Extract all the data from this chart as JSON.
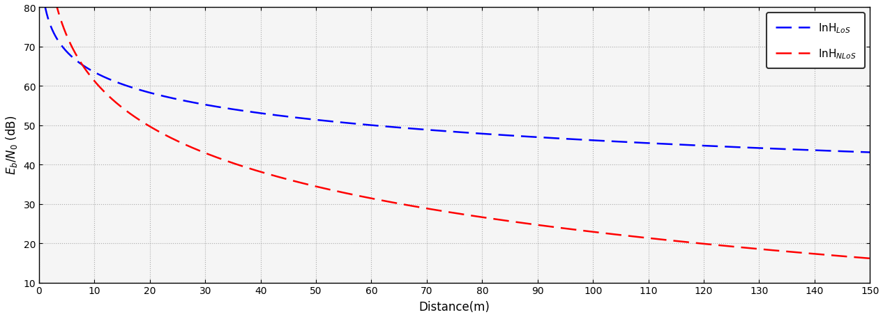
{
  "xlabel": "Distance(m)",
  "ylabel": "$E_b/N_0$ (dB)",
  "xlim": [
    0,
    150
  ],
  "ylim": [
    10,
    80
  ],
  "xticks": [
    0,
    10,
    20,
    30,
    40,
    50,
    60,
    70,
    80,
    90,
    100,
    110,
    120,
    130,
    140,
    150
  ],
  "yticks": [
    10,
    20,
    30,
    40,
    50,
    60,
    70,
    80
  ],
  "los_color": "#0000FF",
  "nlos_color": "#FF0000",
  "los_label": "InH$_{LoS}$",
  "nlos_label": "InH$_{NLoS}$",
  "PL_los_b": 17.3,
  "PL_nlos_b": 38.3,
  "C_los": 80.75,
  "C_nlos": 99.5,
  "d_end": 150,
  "background_color": "#f5f5f5",
  "grid_color": "#aaaaaa",
  "linewidth": 1.8,
  "dash_on": 9,
  "dash_off": 4
}
